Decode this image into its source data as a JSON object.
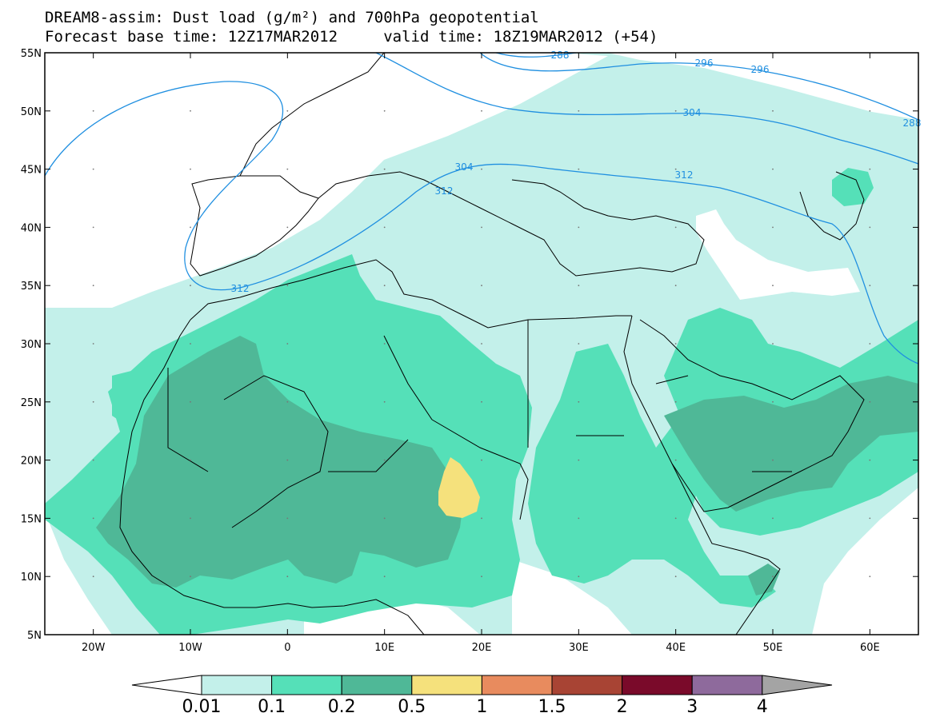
{
  "title": {
    "line1": "DREAM8-assim: Dust load (g/m²) and 700hPa geopotential",
    "line2": "Forecast base time: 12Z17MAR2012     valid time: 18Z19MAR2012 (+54)"
  },
  "map": {
    "lon_range": [
      -25,
      65
    ],
    "lat_range": [
      5,
      55
    ],
    "lat_ticks": [
      "55N",
      "50N",
      "45N",
      "40N",
      "35N",
      "30N",
      "25N",
      "20N",
      "15N",
      "10N",
      "5N"
    ],
    "lon_ticks": [
      "20W",
      "10W",
      "0",
      "10E",
      "20E",
      "30E",
      "40E",
      "50E",
      "60E"
    ],
    "contour_labels": [
      "312",
      "312",
      "312",
      "304",
      "296",
      "296",
      "288",
      "304",
      "288"
    ],
    "contour_color": "#1f8fe0"
  },
  "colorbar": {
    "labels": [
      "0.01",
      "0.1",
      "0.2",
      "0.5",
      "1",
      "1.5",
      "2",
      "3",
      "4"
    ],
    "colors": [
      "#ffffff",
      "#c3f0ea",
      "#55e0b8",
      "#4fb897",
      "#f5e17c",
      "#e88b5e",
      "#a84434",
      "#7a0a2a",
      "#8e6a9c",
      "#a4a4a4"
    ]
  }
}
